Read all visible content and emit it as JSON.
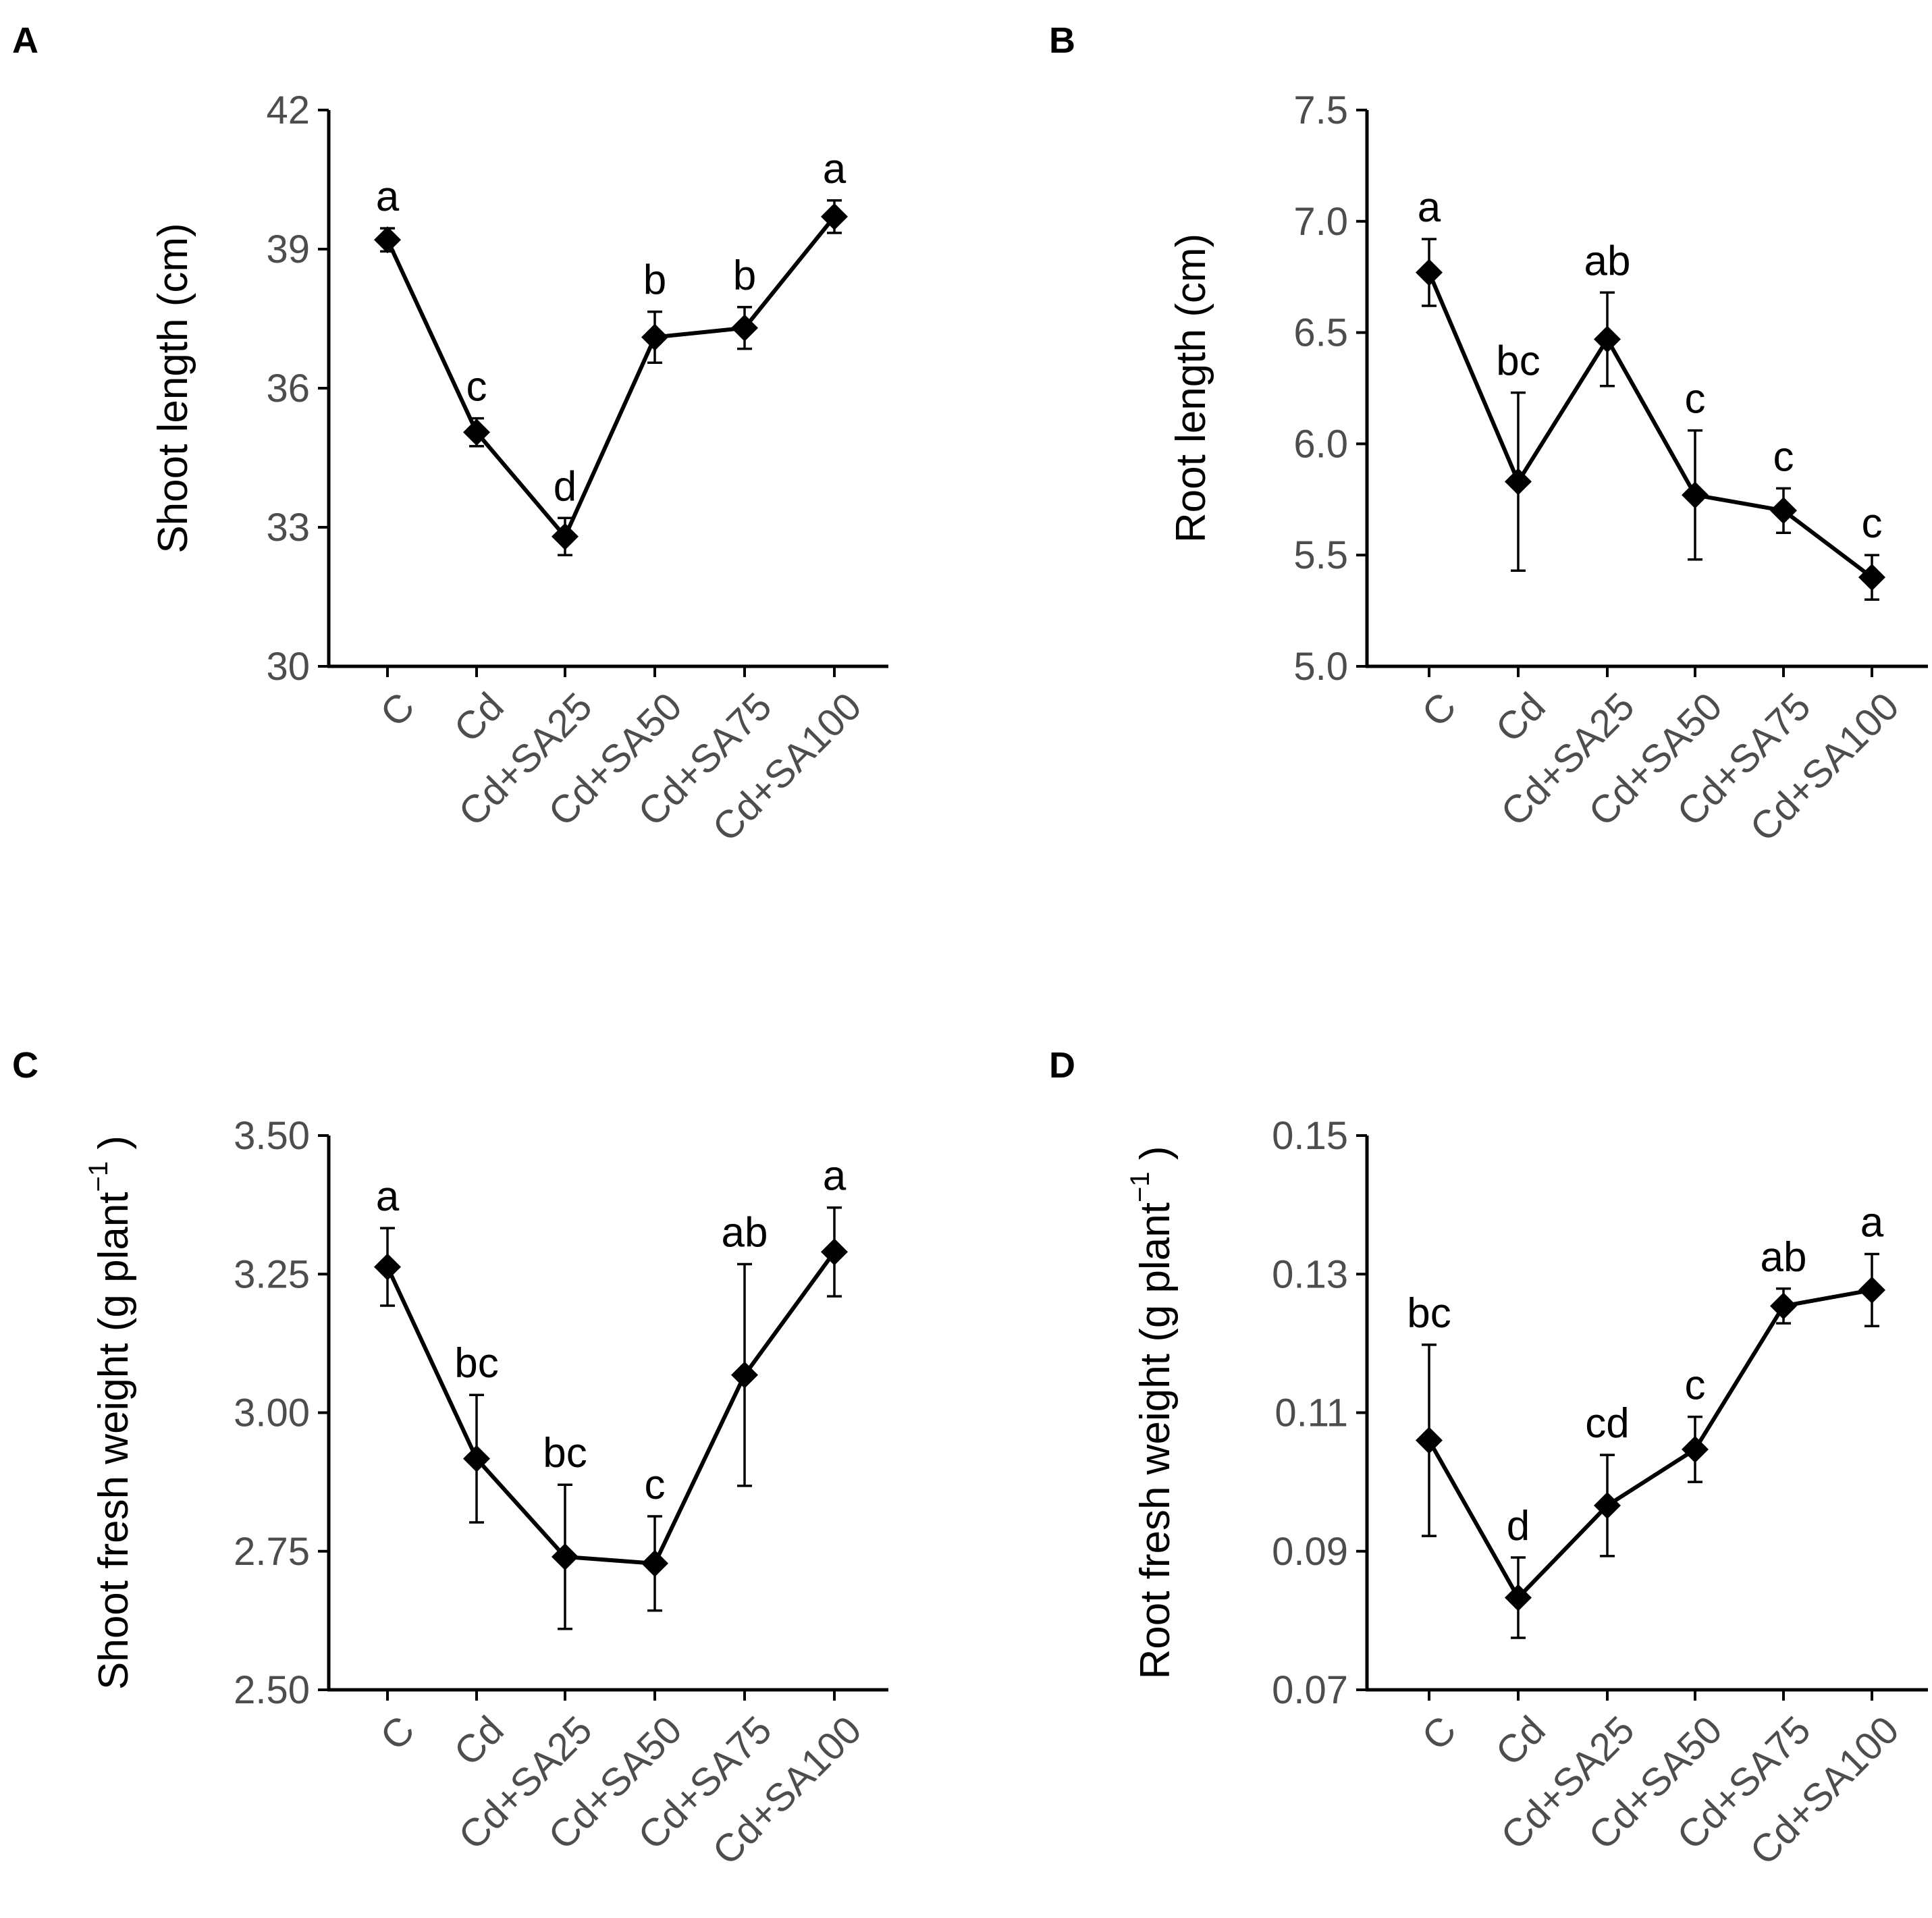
{
  "chart_data": [
    {
      "type": "line",
      "panel": "A",
      "categories": [
        "C",
        "Cd",
        "Cd+SA25",
        "Cd+SA50",
        "Cd+SA75",
        "Cd+SA100"
      ],
      "values": [
        39.2,
        35.05,
        32.8,
        37.1,
        37.3,
        39.7
      ],
      "errors": [
        0.25,
        0.3,
        0.4,
        0.55,
        0.45,
        0.35
      ],
      "significance": [
        "a",
        "c",
        "d",
        "b",
        "b",
        "a"
      ],
      "ylabel": "Shoot length (cm)",
      "ylabel_sup": "",
      "ylabel_close": "",
      "ylim": [
        30,
        42
      ],
      "yticks": [
        "30",
        "33",
        "36",
        "39",
        "42"
      ],
      "ytick_values": [
        30,
        33,
        36,
        39,
        42
      ]
    },
    {
      "type": "line",
      "panel": "B",
      "categories": [
        "C",
        "Cd",
        "Cd+SA25",
        "Cd+SA50",
        "Cd+SA75",
        "Cd+SA100"
      ],
      "values": [
        6.77,
        5.83,
        6.47,
        5.77,
        5.7,
        5.4
      ],
      "errors": [
        0.15,
        0.4,
        0.21,
        0.29,
        0.1,
        0.1
      ],
      "significance": [
        "a",
        "bc",
        "ab",
        "c",
        "c",
        "c"
      ],
      "ylabel": "Root length (cm)",
      "ylabel_sup": "",
      "ylabel_close": "",
      "ylim": [
        5.0,
        7.5
      ],
      "yticks": [
        "5.0",
        "5.5",
        "6.0",
        "6.5",
        "7.0",
        "7.5"
      ],
      "ytick_values": [
        5.0,
        5.5,
        6.0,
        6.5,
        7.0,
        7.5
      ]
    },
    {
      "type": "line",
      "panel": "C",
      "categories": [
        "C",
        "Cd",
        "Cd+SA25",
        "Cd+SA50",
        "Cd+SA75",
        "Cd+SA100"
      ],
      "values": [
        3.263,
        2.917,
        2.74,
        2.728,
        3.068,
        3.29
      ],
      "errors": [
        0.07,
        0.115,
        0.13,
        0.085,
        0.2,
        0.08
      ],
      "significance": [
        "a",
        "bc",
        "bc",
        "c",
        "ab",
        "a"
      ],
      "ylabel": "Shoot fresh weight (g  plant",
      "ylabel_sup": "−1",
      "ylabel_close": ")",
      "ylim": [
        2.5,
        3.5
      ],
      "yticks": [
        "2.50",
        "2.75",
        "3.00",
        "3.25",
        "3.50"
      ],
      "ytick_values": [
        2.5,
        2.75,
        3.0,
        3.25,
        3.5
      ]
    },
    {
      "type": "line",
      "panel": "D",
      "categories": [
        "C",
        "Cd",
        "Cd+SA25",
        "Cd+SA50",
        "Cd+SA75",
        "Cd+SA100"
      ],
      "values": [
        0.106,
        0.0833,
        0.0966,
        0.1047,
        0.1254,
        0.1277
      ],
      "errors": [
        0.0138,
        0.0058,
        0.0073,
        0.0047,
        0.0025,
        0.0052
      ],
      "significance": [
        "bc",
        "d",
        "cd",
        "c",
        "ab",
        "a"
      ],
      "ylabel": "Root fresh weight (g  plant",
      "ylabel_sup": "−1",
      "ylabel_close": ")",
      "ylim": [
        0.07,
        0.15
      ],
      "yticks": [
        "0.07",
        "0.09",
        "0.11",
        "0.13",
        "0.15"
      ],
      "ytick_values": [
        0.07,
        0.09,
        0.11,
        0.13,
        0.15
      ]
    }
  ]
}
